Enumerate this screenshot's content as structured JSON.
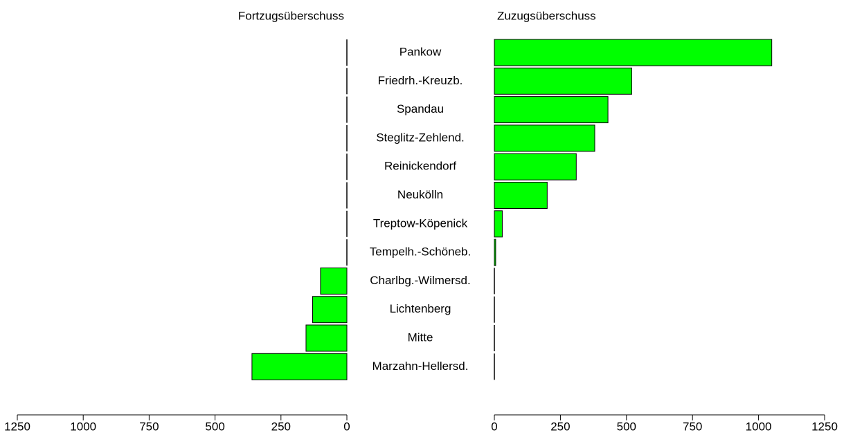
{
  "chart_data": {
    "type": "bar",
    "orientation": "horizontal",
    "categories": [
      "Pankow",
      "Friedrh.-Kreuzb.",
      "Spandau",
      "Steglitz-Zehlend.",
      "Reinickendorf",
      "Neukölln",
      "Treptow-Köpenick",
      "Tempelh.-Schöneb.",
      "Charlbg.-Wilmersd.",
      "Lichtenberg",
      "Mitte",
      "Marzahn-Hellersd."
    ],
    "series": [
      {
        "name": "Fortzugsüberschuss",
        "color": "#00ff00",
        "values": [
          0,
          0,
          0,
          0,
          0,
          0,
          0,
          0,
          100,
          130,
          155,
          360
        ],
        "xlim": [
          1250,
          0
        ],
        "xticks": [
          1250,
          1000,
          750,
          500,
          250,
          0
        ]
      },
      {
        "name": "Zuzugsüberschuss",
        "color": "#00ff00",
        "values": [
          1050,
          520,
          430,
          380,
          310,
          200,
          30,
          5,
          0,
          0,
          0,
          0
        ],
        "xlim": [
          0,
          1250
        ],
        "xticks": [
          0,
          250,
          500,
          750,
          1000,
          1250
        ]
      }
    ]
  }
}
